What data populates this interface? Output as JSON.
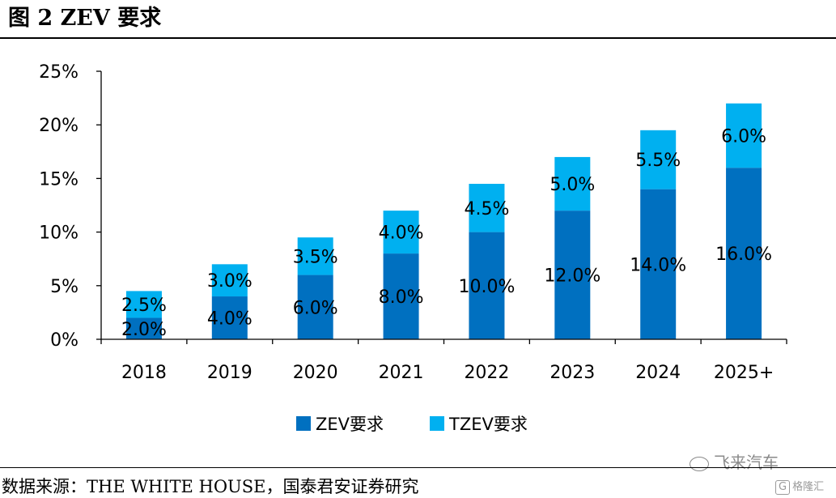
{
  "figure": {
    "title": "图  2 ZEV 要求",
    "source": "数据来源：THE WHITE HOUSE，国泰君安证券研究",
    "watermark": "飞来汽车",
    "corner_badge_icon": "G",
    "corner_badge_text": "格隆汇"
  },
  "chart_data": {
    "type": "bar",
    "stacked": true,
    "categories": [
      "2018",
      "2019",
      "2020",
      "2021",
      "2022",
      "2023",
      "2024",
      "2025+"
    ],
    "series": [
      {
        "name": "ZEV要求",
        "color": "#0070C0",
        "values": [
          2.0,
          4.0,
          6.0,
          8.0,
          10.0,
          12.0,
          14.0,
          16.0
        ],
        "labels": [
          "2.0%",
          "4.0%",
          "6.0%",
          "8.0%",
          "10.0%",
          "12.0%",
          "14.0%",
          "16.0%"
        ]
      },
      {
        "name": "TZEV要求",
        "color": "#00B0F0",
        "values": [
          2.5,
          3.0,
          3.5,
          4.0,
          4.5,
          5.0,
          5.5,
          6.0
        ],
        "labels": [
          "2.5%",
          "3.0%",
          "3.5%",
          "4.0%",
          "4.5%",
          "5.0%",
          "5.5%",
          "6.0%"
        ]
      }
    ],
    "ylim": [
      0,
      25
    ],
    "yticks": [
      0,
      5,
      10,
      15,
      20,
      25
    ],
    "ytick_labels": [
      "0%",
      "5%",
      "10%",
      "15%",
      "20%",
      "25%"
    ],
    "legend_position": "bottom",
    "grid": false
  }
}
